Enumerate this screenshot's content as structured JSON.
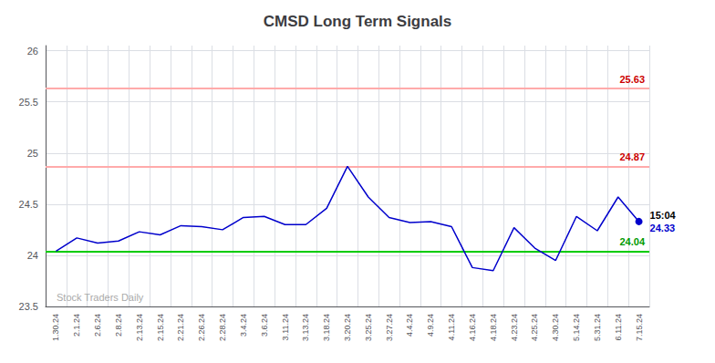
{
  "chart_data": {
    "type": "line",
    "title": "CMSD Long Term Signals",
    "categories": [
      "1.30.24",
      "2.1.24",
      "2.6.24",
      "2.8.24",
      "2.13.24",
      "2.15.24",
      "2.21.24",
      "2.26.24",
      "2.28.24",
      "3.4.24",
      "3.6.24",
      "3.11.24",
      "3.13.24",
      "3.18.24",
      "3.20.24",
      "3.25.24",
      "3.27.24",
      "4.4.24",
      "4.9.24",
      "4.11.24",
      "4.16.24",
      "4.18.24",
      "4.23.24",
      "4.25.24",
      "4.30.24",
      "5.14.24",
      "5.31.24",
      "6.11.24",
      "7.15.24"
    ],
    "values": [
      24.04,
      24.17,
      24.12,
      24.14,
      24.23,
      24.2,
      24.29,
      24.28,
      24.25,
      24.37,
      24.38,
      24.3,
      24.3,
      24.46,
      24.87,
      24.57,
      24.37,
      24.32,
      24.33,
      24.28,
      23.88,
      23.85,
      24.27,
      24.07,
      23.95,
      24.38,
      24.24,
      24.57,
      24.33
    ],
    "color": "#0000cc",
    "ylim": [
      23.5,
      26.05
    ],
    "yticks": [
      23.5,
      24,
      24.5,
      25,
      25.5,
      26
    ],
    "grid": true,
    "hlines": [
      {
        "value": 24.04,
        "color": "#00cc00",
        "label": "24.04",
        "label_color": "#009900"
      },
      {
        "value": 24.87,
        "color": "#ffaaaa",
        "label": "24.87",
        "label_color": "#cc0000"
      },
      {
        "value": 25.63,
        "color": "#ffaaaa",
        "label": "25.63",
        "label_color": "#cc0000"
      }
    ],
    "annotations": [
      {
        "text": "15:04",
        "color": "#000000"
      },
      {
        "text": "24.33",
        "color": "#0000cc"
      }
    ],
    "watermark": {
      "text": "Stock Traders Daily",
      "color": "#aaaaaa"
    }
  }
}
